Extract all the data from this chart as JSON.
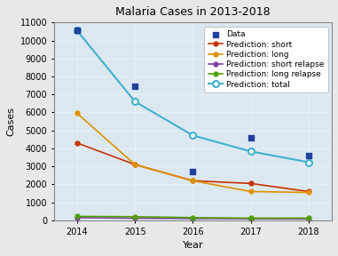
{
  "title": "Malaria Cases in 2013-2018",
  "xlabel": "Year",
  "ylabel": "Cases",
  "years": [
    2014,
    2015,
    2016,
    2017,
    2018
  ],
  "data_points": {
    "x": [
      2014,
      2015,
      2016,
      2017,
      2018
    ],
    "y": [
      10550,
      7450,
      2700,
      4600,
      3600
    ]
  },
  "prediction_short": {
    "x": [
      2014,
      2015,
      2016,
      2017,
      2018
    ],
    "y": [
      4300,
      3100,
      2200,
      2050,
      1600
    ]
  },
  "prediction_long": {
    "x": [
      2014,
      2015,
      2016,
      2017,
      2018
    ],
    "y": [
      5950,
      3100,
      2200,
      1600,
      1550
    ]
  },
  "prediction_short_relapse": {
    "x": [
      2014,
      2015,
      2016,
      2017,
      2018
    ],
    "y": [
      150,
      120,
      100,
      90,
      80
    ]
  },
  "prediction_long_relapse": {
    "x": [
      2014,
      2015,
      2016,
      2017,
      2018
    ],
    "y": [
      220,
      200,
      150,
      120,
      120
    ]
  },
  "prediction_total": {
    "x": [
      2014,
      2015,
      2016,
      2017,
      2018
    ],
    "y": [
      10550,
      6600,
      4720,
      3830,
      3230
    ]
  },
  "colors": {
    "data": "#2040a0",
    "short": "#c83200",
    "long": "#e09000",
    "short_relapse": "#8040a0",
    "long_relapse": "#50a000",
    "total": "#40b0d0"
  },
  "ylim": [
    0,
    11000
  ],
  "yticks": [
    0,
    1000,
    2000,
    3000,
    4000,
    5000,
    6000,
    7000,
    8000,
    9000,
    10000,
    11000
  ],
  "xlim": [
    2013.6,
    2018.4
  ],
  "background_color": "#dce8f0",
  "fig_background": "#e8e8e8",
  "title_fontsize": 9,
  "label_fontsize": 8,
  "tick_fontsize": 7,
  "legend_fontsize": 6.5
}
